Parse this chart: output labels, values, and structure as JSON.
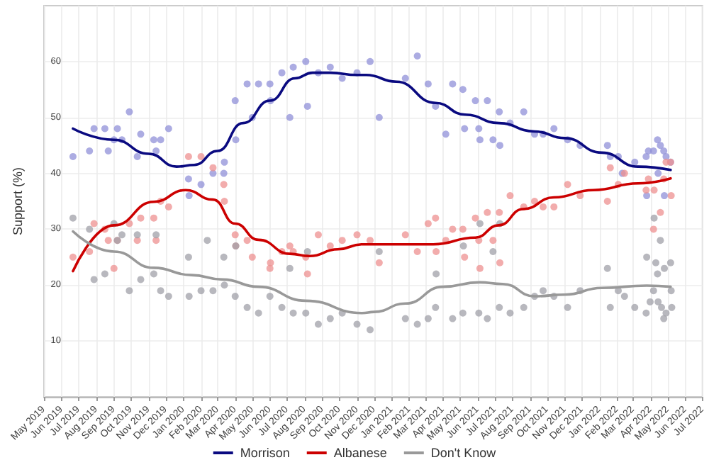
{
  "chart_data": {
    "type": "scatter",
    "ylabel": "Support (%)",
    "legend": "bottom",
    "grid": true,
    "xlim": [
      "2019-05-01",
      "2022-07-01"
    ],
    "ylim": [
      0,
      70
    ],
    "yticks": [
      10,
      20,
      30,
      40,
      50,
      60
    ],
    "xticks": [
      {
        "value": "2019-05-01",
        "label": "May 2019"
      },
      {
        "value": "2019-06-01",
        "label": "Jun 2019"
      },
      {
        "value": "2019-07-01",
        "label": "Jul 2019"
      },
      {
        "value": "2019-08-01",
        "label": "Aug 2019"
      },
      {
        "value": "2019-09-01",
        "label": "Sep 2019"
      },
      {
        "value": "2019-10-01",
        "label": "Oct 2019"
      },
      {
        "value": "2019-11-01",
        "label": "Nov 2019"
      },
      {
        "value": "2019-12-01",
        "label": "Dec 2019"
      },
      {
        "value": "2020-01-01",
        "label": "Jan 2020"
      },
      {
        "value": "2020-02-01",
        "label": "Feb 2020"
      },
      {
        "value": "2020-03-01",
        "label": "Mar 2020"
      },
      {
        "value": "2020-04-01",
        "label": "Apr 2020"
      },
      {
        "value": "2020-05-01",
        "label": "May 2020"
      },
      {
        "value": "2020-06-01",
        "label": "Jun 2020"
      },
      {
        "value": "2020-07-01",
        "label": "Jul 2020"
      },
      {
        "value": "2020-08-01",
        "label": "Aug 2020"
      },
      {
        "value": "2020-09-01",
        "label": "Sep 2020"
      },
      {
        "value": "2020-10-01",
        "label": "Oct 2020"
      },
      {
        "value": "2020-11-01",
        "label": "Nov 2020"
      },
      {
        "value": "2020-12-01",
        "label": "Dec 2020"
      },
      {
        "value": "2021-01-01",
        "label": "Jan 2021"
      },
      {
        "value": "2021-02-01",
        "label": "Feb 2021"
      },
      {
        "value": "2021-03-01",
        "label": "Mar 2021"
      },
      {
        "value": "2021-04-01",
        "label": "Apr 2021"
      },
      {
        "value": "2021-05-01",
        "label": "May 2021"
      },
      {
        "value": "2021-06-01",
        "label": "Jun 2021"
      },
      {
        "value": "2021-07-01",
        "label": "Jul 2021"
      },
      {
        "value": "2021-08-01",
        "label": "Aug 2021"
      },
      {
        "value": "2021-09-01",
        "label": "Sep 2021"
      },
      {
        "value": "2021-10-01",
        "label": "Oct 2021"
      },
      {
        "value": "2021-11-01",
        "label": "Nov 2021"
      },
      {
        "value": "2021-12-01",
        "label": "Dec 2021"
      },
      {
        "value": "2022-01-01",
        "label": "Jan 2022"
      },
      {
        "value": "2022-02-01",
        "label": "Feb 2022"
      },
      {
        "value": "2022-03-01",
        "label": "Mar 2022"
      },
      {
        "value": "2022-04-01",
        "label": "Apr 2022"
      },
      {
        "value": "2022-05-01",
        "label": "May 2022"
      },
      {
        "value": "2022-06-01",
        "label": "Jun 2022"
      },
      {
        "value": "2022-07-01",
        "label": "Jul 2022"
      }
    ],
    "series": [
      {
        "marker": "circle",
        "color": "#9090d8",
        "x": [
          "2019-06-21",
          "2019-07-20",
          "2019-07-28",
          "2019-08-16",
          "2019-08-22",
          "2019-09-01",
          "2019-09-07",
          "2019-09-15",
          "2019-09-28",
          "2019-10-12",
          "2019-10-18",
          "2019-11-10",
          "2019-11-14",
          "2019-11-22",
          "2019-12-06",
          "2020-01-10",
          "2020-01-11",
          "2020-02-01",
          "2020-02-22",
          "2020-03-12",
          "2020-03-13",
          "2020-04-01",
          "2020-04-02",
          "2020-04-22",
          "2020-05-01",
          "2020-05-12",
          "2020-06-01",
          "2020-06-02",
          "2020-06-22",
          "2020-07-06",
          "2020-07-12",
          "2020-08-03",
          "2020-08-06",
          "2020-08-25",
          "2020-09-15",
          "2020-10-06",
          "2020-11-01",
          "2020-11-24",
          "2020-12-10",
          "2021-01-25",
          "2021-02-15",
          "2021-03-06",
          "2021-03-19",
          "2021-04-06",
          "2021-04-18",
          "2021-05-06",
          "2021-05-09",
          "2021-05-28",
          "2021-06-03",
          "2021-06-05",
          "2021-06-18",
          "2021-06-28",
          "2021-07-09",
          "2021-07-10",
          "2021-07-28",
          "2021-08-21",
          "2021-09-09",
          "2021-09-24",
          "2021-10-13",
          "2021-11-06",
          "2021-11-28",
          "2022-01-15",
          "2022-01-20",
          "2022-02-03",
          "2022-02-10",
          "2022-03-04",
          "2022-03-24",
          "2022-03-25",
          "2022-03-28",
          "2022-04-06",
          "2022-04-13",
          "2022-04-14",
          "2022-04-18",
          "2022-04-24",
          "2022-04-25",
          "2022-04-28",
          "2022-05-06"
        ],
        "values": [
          43,
          44,
          48,
          48,
          44,
          46,
          48,
          46,
          51,
          43,
          47,
          46,
          44,
          46,
          48,
          39,
          36,
          38,
          40,
          40,
          42,
          53,
          46,
          56,
          50,
          56,
          56,
          53,
          58,
          50,
          59,
          60,
          52,
          58,
          59,
          57,
          58,
          60,
          50,
          57,
          61,
          56,
          52,
          47,
          56,
          55,
          48,
          53,
          48,
          46,
          53,
          46,
          51,
          45,
          49,
          51,
          47,
          47,
          48,
          46,
          45,
          45,
          43,
          43,
          40,
          42,
          43,
          36,
          44,
          44,
          46,
          40,
          45,
          44,
          36,
          43,
          42
        ]
      },
      {
        "marker": "circle",
        "color": "#ee9090",
        "x": [
          "2019-06-21",
          "2019-07-20",
          "2019-07-28",
          "2019-08-16",
          "2019-08-22",
          "2019-09-01",
          "2019-09-07",
          "2019-09-28",
          "2019-10-12",
          "2019-10-18",
          "2019-11-10",
          "2019-11-14",
          "2019-11-22",
          "2019-12-06",
          "2020-01-10",
          "2020-02-01",
          "2020-02-22",
          "2020-03-12",
          "2020-03-13",
          "2020-04-01",
          "2020-04-02",
          "2020-04-22",
          "2020-05-01",
          "2020-06-01",
          "2020-06-02",
          "2020-06-22",
          "2020-07-06",
          "2020-07-12",
          "2020-08-03",
          "2020-08-06",
          "2020-08-25",
          "2020-09-15",
          "2020-10-06",
          "2020-11-01",
          "2020-11-24",
          "2020-12-10",
          "2021-01-25",
          "2021-02-15",
          "2021-03-06",
          "2021-03-19",
          "2021-03-20",
          "2021-04-06",
          "2021-04-18",
          "2021-05-06",
          "2021-05-09",
          "2021-05-28",
          "2021-06-03",
          "2021-06-05",
          "2021-06-18",
          "2021-06-28",
          "2021-07-09",
          "2021-07-10",
          "2021-07-28",
          "2021-08-21",
          "2021-09-09",
          "2021-09-24",
          "2021-10-13",
          "2021-11-06",
          "2021-11-28",
          "2022-01-15",
          "2022-01-20",
          "2022-02-03",
          "2022-02-14",
          "2022-03-24",
          "2022-03-28",
          "2022-04-06",
          "2022-04-07",
          "2022-04-18",
          "2022-04-24",
          "2022-04-28",
          "2022-05-06",
          "2022-05-07"
        ],
        "values": [
          25,
          26,
          31,
          30,
          28,
          23,
          28,
          31,
          28,
          32,
          32,
          28,
          35,
          34,
          43,
          43,
          41,
          38,
          35,
          29,
          27,
          28,
          25,
          23,
          24,
          26,
          27,
          26,
          25,
          22,
          29,
          27,
          28,
          29,
          28,
          24,
          29,
          26,
          31,
          32,
          26,
          28,
          30,
          30,
          25,
          32,
          28,
          23,
          33,
          28,
          33,
          24,
          36,
          34,
          35,
          34,
          34,
          38,
          36,
          35,
          41,
          38,
          40,
          37,
          39,
          30,
          37,
          33,
          39,
          42,
          42,
          36
        ]
      },
      {
        "marker": "circle",
        "color": "#a0a0a8",
        "x": [
          "2019-06-21",
          "2019-07-20",
          "2019-07-28",
          "2019-08-16",
          "2019-09-01",
          "2019-09-07",
          "2019-09-15",
          "2019-09-28",
          "2019-10-12",
          "2019-10-18",
          "2019-11-10",
          "2019-11-14",
          "2019-11-22",
          "2019-12-06",
          "2020-01-10",
          "2020-01-11",
          "2020-02-01",
          "2020-02-12",
          "2020-02-22",
          "2020-03-12",
          "2020-03-13",
          "2020-04-01",
          "2020-04-02",
          "2020-04-22",
          "2020-05-12",
          "2020-06-01",
          "2020-06-22",
          "2020-07-06",
          "2020-07-12",
          "2020-08-03",
          "2020-08-06",
          "2020-08-25",
          "2020-09-15",
          "2020-10-06",
          "2020-11-01",
          "2020-11-24",
          "2020-12-10",
          "2021-01-25",
          "2021-02-15",
          "2021-03-06",
          "2021-03-19",
          "2021-03-20",
          "2021-04-18",
          "2021-05-06",
          "2021-05-07",
          "2021-06-03",
          "2021-06-05",
          "2021-06-18",
          "2021-06-28",
          "2021-07-09",
          "2021-07-10",
          "2021-07-28",
          "2021-08-21",
          "2021-09-09",
          "2021-09-24",
          "2021-10-13",
          "2021-11-06",
          "2021-11-28",
          "2022-01-15",
          "2022-01-20",
          "2022-02-03",
          "2022-02-14",
          "2022-03-04",
          "2022-03-24",
          "2022-03-25",
          "2022-03-31",
          "2022-04-06",
          "2022-04-07",
          "2022-04-10",
          "2022-04-13",
          "2022-04-14",
          "2022-04-18",
          "2022-04-20",
          "2022-04-24",
          "2022-04-25",
          "2022-04-28",
          "2022-05-06",
          "2022-05-07",
          "2022-05-08"
        ],
        "values": [
          32,
          30,
          21,
          22,
          31,
          28,
          29,
          19,
          29,
          21,
          22,
          29,
          19,
          18,
          25,
          18,
          19,
          28,
          19,
          25,
          20,
          18,
          27,
          16,
          15,
          18,
          16,
          23,
          15,
          15,
          26,
          13,
          14,
          15,
          13,
          12,
          26,
          14,
          13,
          14,
          16,
          22,
          14,
          15,
          27,
          15,
          31,
          14,
          26,
          16,
          31,
          15,
          16,
          18,
          19,
          18,
          16,
          19,
          23,
          16,
          19,
          18,
          16,
          15,
          25,
          17,
          19,
          32,
          24,
          22,
          17,
          28,
          16,
          14,
          23,
          15,
          24,
          19,
          16
        ]
      },
      {
        "type": "line",
        "name": "Morrison",
        "color": "#0a0a80",
        "marker": "none",
        "x": [
          "2019-06-21",
          "2019-09-01",
          "2019-11-01",
          "2019-12-20",
          "2020-01-20",
          "2020-03-01",
          "2020-04-15",
          "2020-06-01",
          "2020-07-15",
          "2020-08-15",
          "2020-09-15",
          "2020-11-01",
          "2020-11-17",
          "2021-01-09",
          "2021-03-19",
          "2021-05-10",
          "2021-07-08",
          "2021-09-09",
          "2021-11-01",
          "2022-01-05",
          "2022-03-10",
          "2022-05-06"
        ],
        "values": [
          48,
          46,
          43.5,
          41.2,
          41.5,
          44,
          49,
          53,
          57,
          58,
          58,
          57.6,
          57.6,
          56.4,
          52.6,
          50.5,
          49,
          47.5,
          46.3,
          43.7,
          41.2,
          40.6
        ]
      },
      {
        "type": "line",
        "name": "Albanese",
        "color": "#cc0000",
        "marker": "none",
        "x": [
          "2019-06-21",
          "2019-09-01",
          "2019-11-10",
          "2020-01-05",
          "2020-02-22",
          "2020-04-01",
          "2020-05-12",
          "2020-07-06",
          "2020-08-10",
          "2020-09-28",
          "2020-11-10",
          "2020-12-19",
          "2021-03-15",
          "2021-05-28",
          "2021-07-08",
          "2021-08-20",
          "2021-10-13",
          "2021-12-21",
          "2022-03-10",
          "2022-05-06"
        ],
        "values": [
          22.5,
          30.7,
          34.9,
          37,
          35.3,
          31,
          28.1,
          25.6,
          25.2,
          26.4,
          27.3,
          27.3,
          27.3,
          28.5,
          30.7,
          33.6,
          35.7,
          37,
          38.2,
          39.1
        ]
      },
      {
        "type": "line",
        "name": "Don't Know",
        "color": "#999999",
        "marker": "none",
        "x": [
          "2019-06-21",
          "2019-09-01",
          "2019-11-10",
          "2020-01-15",
          "2020-03-10",
          "2020-05-12",
          "2020-08-03",
          "2020-11-10",
          "2020-12-01",
          "2021-01-25",
          "2021-04-01",
          "2021-06-04",
          "2021-07-15",
          "2021-09-09",
          "2021-11-01",
          "2022-01-05",
          "2022-03-25",
          "2022-05-06"
        ],
        "values": [
          29.6,
          26,
          23.1,
          21.8,
          21,
          19.7,
          17.2,
          15,
          15.2,
          16.7,
          19.7,
          20.5,
          20.2,
          18,
          18.3,
          19.5,
          19.9,
          19.7
        ]
      }
    ]
  }
}
